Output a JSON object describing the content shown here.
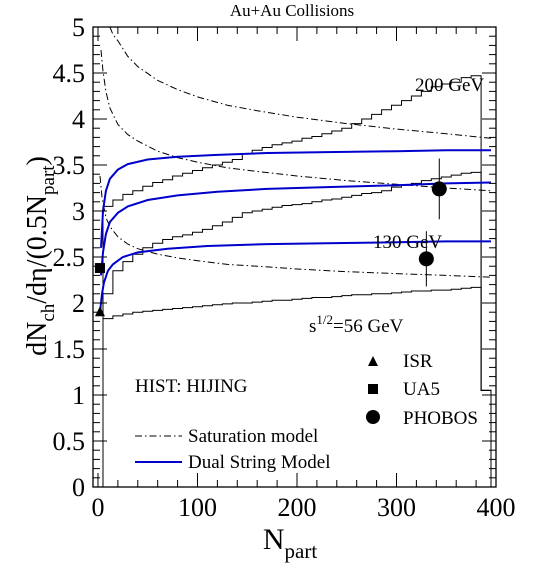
{
  "chart_data": {
    "type": "line",
    "title": "Au+Au Collisions",
    "xlabel": "N",
    "xlabel_sub": "part",
    "ylabel_parts": [
      "dN",
      "ch",
      "/dη/(0.5N",
      "part",
      ")"
    ],
    "xlim": [
      -5,
      400
    ],
    "ylim": [
      0,
      5
    ],
    "x_ticks": [
      0,
      100,
      200,
      300,
      400
    ],
    "x_tick_labels": [
      "0",
      "100",
      "200",
      "300",
      "400"
    ],
    "y_ticks": [
      0,
      0.5,
      1,
      1.5,
      2,
      2.5,
      3,
      3.5,
      4,
      4.5,
      5
    ],
    "y_tick_labels": [
      "0",
      "0.5",
      "1",
      "1.5",
      "2",
      "2.5",
      "3",
      "3.5",
      "4",
      "4.5",
      "5"
    ],
    "grid": false,
    "annotations": [
      {
        "text": "200 GeV",
        "x": 300,
        "y": 4.33
      },
      {
        "text": "130 GeV",
        "x": 275,
        "y": 2.6
      },
      {
        "text_base": "s",
        "text_sup": "1/2",
        "text_rest": "=56 GeV",
        "x": 208,
        "y": 1.68
      },
      {
        "text": "HIST: HIJING",
        "x": 8,
        "y": 1.2
      }
    ],
    "legend": {
      "placement": "bottom-left and bottom-right",
      "line_entries": [
        {
          "label": "Saturation model",
          "style": "dashdot"
        },
        {
          "label": "Dual String Model",
          "style": "solid",
          "color": "#0000cc"
        }
      ],
      "marker_entries": [
        {
          "label": "ISR",
          "marker": "triangle"
        },
        {
          "label": "UA5",
          "marker": "square"
        },
        {
          "label": "PHOBOS",
          "marker": "circle"
        }
      ]
    },
    "series": [
      {
        "style": "histogram",
        "energy": "200 GeV",
        "x": [
          10,
          20,
          30,
          40,
          50,
          60,
          70,
          80,
          90,
          100,
          110,
          120,
          130,
          140,
          150,
          160,
          170,
          180,
          190,
          200,
          210,
          220,
          230,
          240,
          250,
          260,
          270,
          280,
          290,
          300,
          310,
          320,
          330,
          340,
          350,
          360,
          370,
          380,
          390
        ],
        "values": [
          3.05,
          3.12,
          3.18,
          3.22,
          3.27,
          3.31,
          3.34,
          3.38,
          3.41,
          3.44,
          3.47,
          3.5,
          3.53,
          3.56,
          3.62,
          3.66,
          3.69,
          3.72,
          3.74,
          3.76,
          3.79,
          3.81,
          3.84,
          3.87,
          3.9,
          3.95,
          4.0,
          4.05,
          4.1,
          4.15,
          4.2,
          4.25,
          4.3,
          4.35,
          4.38,
          4.4,
          4.45,
          4.47,
          1.05
        ]
      },
      {
        "style": "histogram",
        "energy": "130 GeV",
        "x": [
          10,
          20,
          30,
          40,
          50,
          60,
          70,
          80,
          90,
          100,
          110,
          120,
          130,
          140,
          150,
          160,
          170,
          180,
          190,
          200,
          210,
          220,
          230,
          240,
          250,
          260,
          270,
          280,
          290,
          300,
          310,
          320,
          330,
          340,
          350,
          360,
          370,
          380,
          390
        ],
        "values": [
          2.1,
          2.35,
          2.45,
          2.53,
          2.6,
          2.65,
          2.69,
          2.72,
          2.74,
          2.77,
          2.8,
          2.84,
          2.88,
          2.93,
          2.98,
          3.0,
          3.02,
          3.04,
          3.06,
          3.07,
          3.08,
          3.1,
          3.12,
          3.13,
          3.15,
          3.17,
          3.19,
          3.2,
          3.22,
          3.26,
          3.28,
          3.3,
          3.33,
          3.35,
          3.37,
          3.39,
          3.41,
          3.42,
          1.05
        ]
      },
      {
        "style": "histogram",
        "energy": "56 GeV",
        "x": [
          10,
          20,
          30,
          40,
          50,
          60,
          70,
          80,
          90,
          100,
          110,
          120,
          130,
          140,
          150,
          160,
          170,
          180,
          190,
          200,
          210,
          220,
          230,
          240,
          250,
          260,
          270,
          280,
          290,
          300,
          310,
          320,
          330,
          340,
          350,
          360,
          370,
          380,
          390
        ],
        "values": [
          1.83,
          1.86,
          1.88,
          1.9,
          1.91,
          1.92,
          1.93,
          1.94,
          1.95,
          1.96,
          1.97,
          1.98,
          1.99,
          2.0,
          2.0,
          2.01,
          2.02,
          2.03,
          2.03,
          2.04,
          2.05,
          2.06,
          2.06,
          2.07,
          2.08,
          2.09,
          2.09,
          2.1,
          2.1,
          2.11,
          2.12,
          2.13,
          2.13,
          2.14,
          2.14,
          2.15,
          2.16,
          2.17,
          1.05
        ]
      },
      {
        "style": "dashdot",
        "model": "Saturation",
        "energy": "200 GeV",
        "x": [
          12,
          15,
          20,
          30,
          40,
          60,
          80,
          100,
          130,
          160,
          200,
          250,
          300,
          350,
          395
        ],
        "values": [
          5.0,
          4.92,
          4.85,
          4.68,
          4.57,
          4.42,
          4.32,
          4.24,
          4.15,
          4.09,
          4.02,
          3.95,
          3.89,
          3.84,
          3.79
        ]
      },
      {
        "style": "dashdot",
        "model": "Saturation",
        "energy": "130 GeV",
        "x": [
          3,
          5,
          8,
          12,
          20,
          30,
          40,
          60,
          80,
          100,
          130,
          160,
          200,
          250,
          300,
          350,
          395
        ],
        "values": [
          4.75,
          4.52,
          4.3,
          4.12,
          3.94,
          3.83,
          3.76,
          3.65,
          3.58,
          3.53,
          3.47,
          3.43,
          3.38,
          3.33,
          3.29,
          3.25,
          3.22
        ]
      },
      {
        "style": "dashdot",
        "model": "Saturation",
        "energy": "56 GeV",
        "x": [
          2,
          4,
          8,
          12,
          20,
          30,
          40,
          60,
          80,
          100,
          130,
          160,
          200,
          250,
          300,
          350,
          395
        ],
        "values": [
          3.38,
          3.15,
          2.93,
          2.83,
          2.72,
          2.64,
          2.59,
          2.53,
          2.49,
          2.46,
          2.42,
          2.4,
          2.37,
          2.34,
          2.32,
          2.3,
          2.28
        ]
      },
      {
        "style": "solid",
        "model": "Dual String",
        "energy": "200 GeV",
        "x": [
          3,
          5,
          8,
          12,
          20,
          30,
          50,
          80,
          120,
          170,
          230,
          300,
          350,
          395
        ],
        "values": [
          2.6,
          3.0,
          3.22,
          3.35,
          3.45,
          3.51,
          3.56,
          3.59,
          3.61,
          3.63,
          3.64,
          3.65,
          3.66,
          3.66
        ]
      },
      {
        "style": "solid",
        "model": "Dual String",
        "energy": "130 GeV",
        "x": [
          3,
          5,
          8,
          12,
          20,
          30,
          50,
          80,
          120,
          170,
          230,
          300,
          350,
          395
        ],
        "values": [
          2.3,
          2.55,
          2.75,
          2.88,
          2.98,
          3.05,
          3.12,
          3.17,
          3.21,
          3.24,
          3.26,
          3.28,
          3.3,
          3.31
        ]
      },
      {
        "style": "solid",
        "model": "Dual String",
        "energy": "56 GeV",
        "x": [
          2,
          4,
          6,
          10,
          15,
          25,
          40,
          70,
          110,
          170,
          230,
          300,
          350,
          395
        ],
        "values": [
          1.9,
          2.1,
          2.22,
          2.35,
          2.42,
          2.5,
          2.55,
          2.59,
          2.62,
          2.64,
          2.65,
          2.66,
          2.67,
          2.67
        ]
      }
    ],
    "points": [
      {
        "label": "ISR",
        "marker": "triangle",
        "x": 2,
        "y": 1.9
      },
      {
        "label": "UA5",
        "marker": "square",
        "x": 2,
        "y": 2.38
      },
      {
        "label": "PHOBOS",
        "marker": "circle",
        "x": 330,
        "y": 2.48,
        "err_low": 2.18,
        "err_high": 2.78
      },
      {
        "label": "PHOBOS",
        "marker": "circle",
        "x": 343,
        "y": 3.24,
        "err_low": 2.91,
        "err_high": 3.57
      }
    ]
  }
}
